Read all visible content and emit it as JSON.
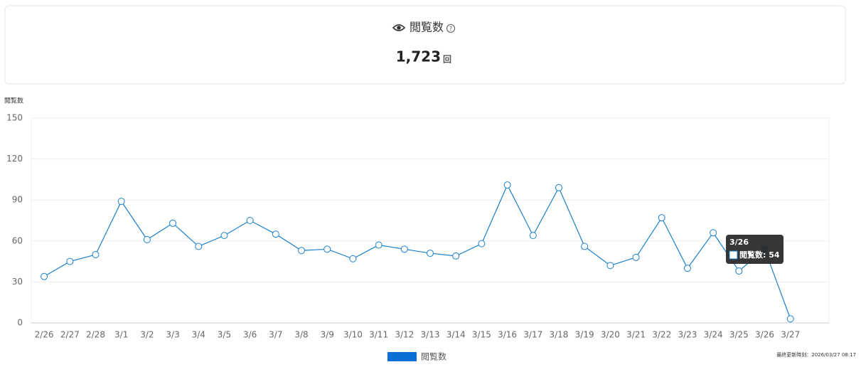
{
  "summary": {
    "label": "閲覧数",
    "value": "1,723",
    "unit": "回"
  },
  "chart_data": {
    "type": "line",
    "y_axis_label": "閲覧数",
    "categories": [
      "2/26",
      "2/27",
      "2/28",
      "3/1",
      "3/2",
      "3/3",
      "3/4",
      "3/5",
      "3/6",
      "3/7",
      "3/8",
      "3/9",
      "3/10",
      "3/11",
      "3/12",
      "3/13",
      "3/14",
      "3/15",
      "3/16",
      "3/17",
      "3/18",
      "3/19",
      "3/20",
      "3/21",
      "3/22",
      "3/23",
      "3/24",
      "3/25",
      "3/26",
      "3/27"
    ],
    "series": [
      {
        "name": "閲覧数",
        "color": "#1a80cc",
        "values": [
          34,
          45,
          50,
          89,
          61,
          73,
          56,
          64,
          75,
          65,
          53,
          54,
          47,
          57,
          54,
          51,
          49,
          58,
          101,
          64,
          99,
          56,
          42,
          48,
          77,
          40,
          66,
          38,
          54,
          3
        ]
      }
    ],
    "ylim": [
      0,
      150
    ],
    "yticks": [
      0,
      30,
      60,
      90,
      120,
      150
    ],
    "grid": true,
    "legend": "bottom",
    "tooltip": {
      "title": "3/26",
      "text": "閲覧数: 54"
    }
  },
  "footer": "最終更新時刻：2026/03/27 08:17"
}
